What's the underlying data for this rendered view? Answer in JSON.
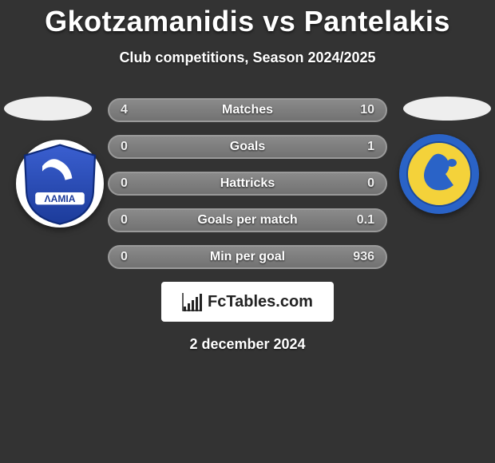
{
  "title": "Gkotzamanidis vs Pantelakis",
  "subtitle": "Club competitions, Season 2024/2025",
  "date": "2 december 2024",
  "brand": {
    "text": "FcTables.com",
    "icon_name": "bar-chart-icon",
    "background": "#ffffff",
    "text_color": "#222222",
    "icon_bars": [
      6,
      10,
      14,
      18,
      22
    ]
  },
  "style": {
    "background_color": "#333333",
    "title_color": "#ffffff",
    "title_fontsize": 36,
    "subtitle_fontsize": 18,
    "bar": {
      "height": 30,
      "radius": 15,
      "gap": 16,
      "gradient_top": "#8a8a8a",
      "gradient_bottom": "#727272",
      "border_color": "#9a9a9a",
      "font_size": 16,
      "text_color": "#ffffff"
    },
    "head_ellipse": {
      "width": 110,
      "height": 30,
      "color": "#eeeeee"
    }
  },
  "left_crest": {
    "outer_bg": "#ffffff",
    "shield_bg": "linear-gradient(#2a4fbf,#1c3b9a)",
    "accent": "#ffffff",
    "text": "ΛΑΜΙΑ"
  },
  "right_crest": {
    "outer_bg": "#2a63c7",
    "shield_bg": "#f4d23a",
    "accent": "#2a63c7"
  },
  "rows": [
    {
      "label": "Matches",
      "left": "4",
      "right": "10"
    },
    {
      "label": "Goals",
      "left": "0",
      "right": "1"
    },
    {
      "label": "Hattricks",
      "left": "0",
      "right": "0"
    },
    {
      "label": "Goals per match",
      "left": "0",
      "right": "0.1"
    },
    {
      "label": "Min per goal",
      "left": "0",
      "right": "936"
    }
  ]
}
